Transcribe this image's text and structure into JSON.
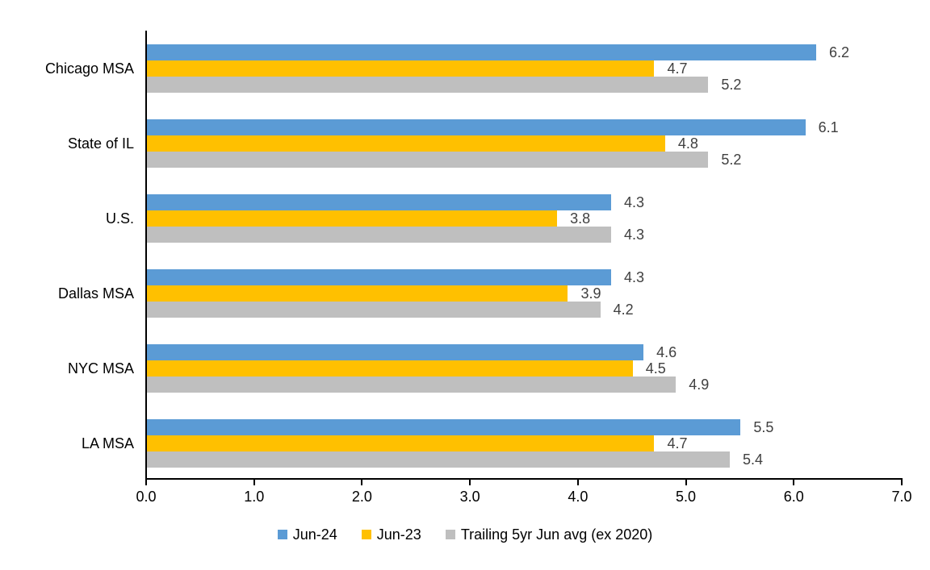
{
  "chart_data": {
    "type": "bar",
    "orientation": "horizontal",
    "categories": [
      "Chicago MSA",
      "State of IL",
      "U.S.",
      "Dallas MSA",
      "NYC MSA",
      "LA MSA"
    ],
    "series": [
      {
        "name": "Jun-24",
        "color": "#5B9BD5",
        "values": [
          6.2,
          6.1,
          4.3,
          4.3,
          4.6,
          5.5
        ]
      },
      {
        "name": "Jun-23",
        "color": "#FFC000",
        "values": [
          4.7,
          4.8,
          3.8,
          3.9,
          4.5,
          4.7
        ]
      },
      {
        "name": "Trailing 5yr Jun avg (ex 2020)",
        "color": "#BFBFBF",
        "values": [
          5.2,
          5.2,
          4.3,
          4.2,
          4.9,
          5.4
        ]
      }
    ],
    "xlim": [
      0,
      7
    ],
    "xtick_labels": [
      "0.0",
      "1.0",
      "2.0",
      "3.0",
      "4.0",
      "5.0",
      "6.0",
      "7.0"
    ],
    "value_label_decimals": 1,
    "grid": false,
    "legend_position": "bottom",
    "colors": {
      "value_label": "#404040",
      "axis_text": "#000000",
      "axis_line": "#000000",
      "background": "#ffffff"
    }
  }
}
